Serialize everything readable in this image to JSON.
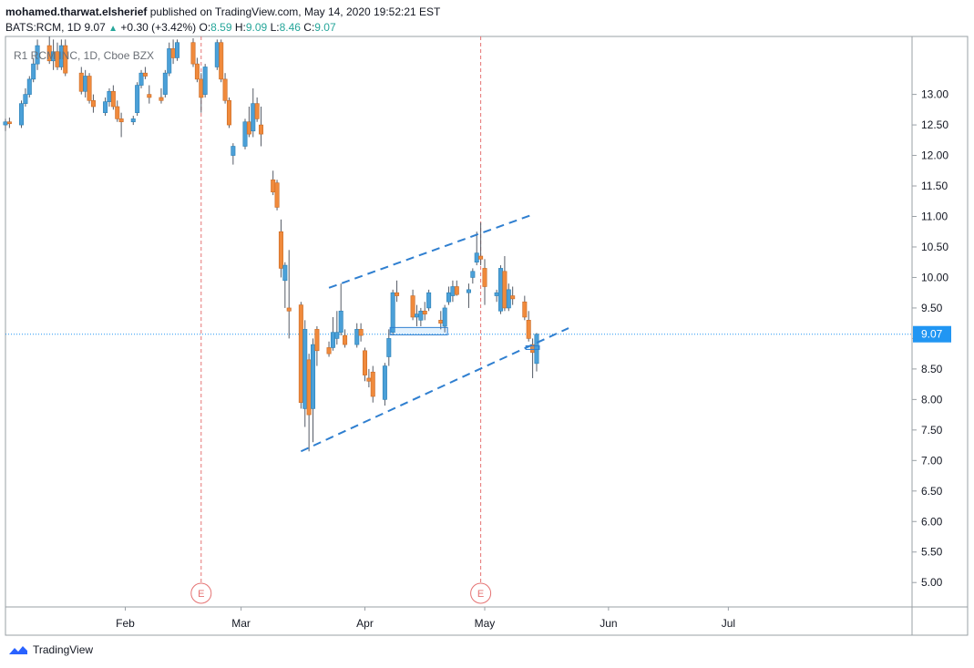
{
  "header": {
    "author": "mohamed.tharwat.elsherief",
    "published_text": "published on TradingView.com, May 14, 2020 19:52:21 EST"
  },
  "ohlc": {
    "symbol": "BATS:RCM, 1D",
    "last": "9.07",
    "change": "+0.30 (+3.42%)",
    "o_label": "O:",
    "o": "8.59",
    "h_label": "H:",
    "h": "9.09",
    "l_label": "L:",
    "l": "8.46",
    "c_label": "C:",
    "c": "9.07"
  },
  "footer": {
    "brand": "TradingView"
  },
  "colors": {
    "up": "#4ba0d8",
    "down": "#f08a3c",
    "trend": "#2f7fd0",
    "grid": "#9aa0a6",
    "earnings": "#e57373",
    "price_line": "#2196f3"
  },
  "chart_data": {
    "type": "candlestick",
    "title": "R1 RCM INC, 1D, Cboe BZX",
    "y_ticks": [
      13.0,
      12.5,
      12.0,
      11.5,
      11.0,
      10.5,
      10.0,
      9.5,
      9.0,
      8.5,
      8.0,
      7.5,
      7.0,
      6.5,
      6.0,
      5.5,
      5.0
    ],
    "y_tick_labels": [
      "13.00",
      "12.50",
      "12.00",
      "11.50",
      "11.00",
      "10.50",
      "10.00",
      "9.50",
      "9.00",
      "8.50",
      "8.00",
      "7.50",
      "7.00",
      "6.50",
      "6.00",
      "5.50",
      "5.00"
    ],
    "ylim": [
      4.6,
      13.95
    ],
    "x_range": [
      "2020-01-02",
      "2020-08-16"
    ],
    "x_ticks": [
      {
        "date": "2020-02-01",
        "label": "Feb"
      },
      {
        "date": "2020-03-01",
        "label": "Mar"
      },
      {
        "date": "2020-04-01",
        "label": "Apr"
      },
      {
        "date": "2020-05-01",
        "label": "May"
      },
      {
        "date": "2020-06-01",
        "label": "Jun"
      },
      {
        "date": "2020-07-01",
        "label": "Jul"
      }
    ],
    "current_price": 9.07,
    "current_price_label": "9.07",
    "earnings_markers": [
      {
        "date": "2020-02-20",
        "label": "E"
      },
      {
        "date": "2020-04-30",
        "label": "E"
      }
    ],
    "trendlines": [
      {
        "from": {
          "date": "2020-03-23",
          "price": 9.83
        },
        "to": {
          "date": "2020-05-13",
          "price": 11.03
        }
      },
      {
        "from": {
          "date": "2020-03-16",
          "price": 7.15
        },
        "to": {
          "date": "2020-05-22",
          "price": 9.17
        }
      }
    ],
    "zones": [
      {
        "from_date": "2020-04-08",
        "to_date": "2020-04-21",
        "top": 9.18,
        "bottom": 9.06
      },
      {
        "from_date": "2020-05-12",
        "to_date": "2020-05-14",
        "top": 8.88,
        "bottom": 8.82
      }
    ],
    "candles": [
      {
        "d": "2020-01-02",
        "o": 12.5,
        "h": 12.6,
        "l": 12.4,
        "c": 12.55
      },
      {
        "d": "2020-01-03",
        "o": 12.55,
        "h": 12.62,
        "l": 12.45,
        "c": 12.52
      },
      {
        "d": "2020-01-06",
        "o": 12.5,
        "h": 12.9,
        "l": 12.45,
        "c": 12.85
      },
      {
        "d": "2020-01-07",
        "o": 12.85,
        "h": 13.1,
        "l": 12.8,
        "c": 13.0
      },
      {
        "d": "2020-01-08",
        "o": 13.0,
        "h": 13.3,
        "l": 12.95,
        "c": 13.25
      },
      {
        "d": "2020-01-09",
        "o": 13.25,
        "h": 13.6,
        "l": 13.2,
        "c": 13.5
      },
      {
        "d": "2020-01-10",
        "o": 13.5,
        "h": 13.9,
        "l": 13.4,
        "c": 13.8
      },
      {
        "d": "2020-01-13",
        "o": 13.8,
        "h": 13.95,
        "l": 13.5,
        "c": 13.55
      },
      {
        "d": "2020-01-14",
        "o": 13.55,
        "h": 13.9,
        "l": 13.4,
        "c": 13.7
      },
      {
        "d": "2020-01-15",
        "o": 13.7,
        "h": 13.85,
        "l": 13.4,
        "c": 13.45
      },
      {
        "d": "2020-01-16",
        "o": 13.45,
        "h": 13.9,
        "l": 13.4,
        "c": 13.8
      },
      {
        "d": "2020-01-17",
        "o": 13.8,
        "h": 13.9,
        "l": 13.3,
        "c": 13.35
      },
      {
        "d": "2020-01-21",
        "o": 13.35,
        "h": 13.45,
        "l": 13.0,
        "c": 13.05
      },
      {
        "d": "2020-01-22",
        "o": 13.05,
        "h": 13.4,
        "l": 12.95,
        "c": 13.3
      },
      {
        "d": "2020-01-23",
        "o": 13.3,
        "h": 13.35,
        "l": 12.85,
        "c": 12.9
      },
      {
        "d": "2020-01-24",
        "o": 12.9,
        "h": 13.0,
        "l": 12.7,
        "c": 12.8
      },
      {
        "d": "2020-01-27",
        "o": 12.7,
        "h": 12.95,
        "l": 12.65,
        "c": 12.88
      },
      {
        "d": "2020-01-28",
        "o": 12.88,
        "h": 13.1,
        "l": 12.8,
        "c": 13.05
      },
      {
        "d": "2020-01-29",
        "o": 13.05,
        "h": 13.15,
        "l": 12.75,
        "c": 12.8
      },
      {
        "d": "2020-01-30",
        "o": 12.8,
        "h": 12.9,
        "l": 12.55,
        "c": 12.6
      },
      {
        "d": "2020-01-31",
        "o": 12.6,
        "h": 12.7,
        "l": 12.3,
        "c": 12.55
      },
      {
        "d": "2020-02-03",
        "o": 12.55,
        "h": 12.65,
        "l": 12.5,
        "c": 12.6
      },
      {
        "d": "2020-02-04",
        "o": 12.7,
        "h": 13.2,
        "l": 12.65,
        "c": 13.15
      },
      {
        "d": "2020-02-05",
        "o": 13.15,
        "h": 13.4,
        "l": 13.1,
        "c": 13.35
      },
      {
        "d": "2020-02-06",
        "o": 13.35,
        "h": 13.45,
        "l": 13.25,
        "c": 13.3
      },
      {
        "d": "2020-02-07",
        "o": 13.0,
        "h": 13.15,
        "l": 12.85,
        "c": 12.95
      },
      {
        "d": "2020-02-10",
        "o": 12.95,
        "h": 13.1,
        "l": 12.85,
        "c": 12.9
      },
      {
        "d": "2020-02-11",
        "o": 13.0,
        "h": 13.4,
        "l": 12.95,
        "c": 13.35
      },
      {
        "d": "2020-02-12",
        "o": 13.35,
        "h": 13.85,
        "l": 13.3,
        "c": 13.75
      },
      {
        "d": "2020-02-13",
        "o": 13.75,
        "h": 13.9,
        "l": 13.5,
        "c": 13.6
      },
      {
        "d": "2020-02-14",
        "o": 13.6,
        "h": 13.9,
        "l": 13.55,
        "c": 13.85
      },
      {
        "d": "2020-02-18",
        "o": 13.85,
        "h": 13.92,
        "l": 13.45,
        "c": 13.5
      },
      {
        "d": "2020-02-19",
        "o": 13.5,
        "h": 13.6,
        "l": 13.2,
        "c": 13.25
      },
      {
        "d": "2020-02-20",
        "o": 13.25,
        "h": 13.35,
        "l": 12.7,
        "c": 12.95
      },
      {
        "d": "2020-02-21",
        "o": 13.0,
        "h": 13.5,
        "l": 12.95,
        "c": 13.45
      },
      {
        "d": "2020-02-24",
        "o": 13.45,
        "h": 13.9,
        "l": 13.4,
        "c": 13.85
      },
      {
        "d": "2020-02-25",
        "o": 13.85,
        "h": 13.9,
        "l": 13.2,
        "c": 13.25
      },
      {
        "d": "2020-02-26",
        "o": 13.25,
        "h": 13.35,
        "l": 12.85,
        "c": 12.9
      },
      {
        "d": "2020-02-27",
        "o": 12.9,
        "h": 12.95,
        "l": 12.45,
        "c": 12.5
      },
      {
        "d": "2020-02-28",
        "o": 12.0,
        "h": 12.2,
        "l": 11.85,
        "c": 12.15
      },
      {
        "d": "2020-03-02",
        "o": 12.15,
        "h": 12.6,
        "l": 12.1,
        "c": 12.55
      },
      {
        "d": "2020-03-03",
        "o": 12.55,
        "h": 12.8,
        "l": 12.3,
        "c": 12.35
      },
      {
        "d": "2020-03-04",
        "o": 12.4,
        "h": 13.1,
        "l": 12.3,
        "c": 12.85
      },
      {
        "d": "2020-03-05",
        "o": 12.85,
        "h": 12.95,
        "l": 12.55,
        "c": 12.6
      },
      {
        "d": "2020-03-06",
        "o": 12.5,
        "h": 12.8,
        "l": 12.15,
        "c": 12.35
      },
      {
        "d": "2020-03-09",
        "o": 11.6,
        "h": 11.75,
        "l": 11.35,
        "c": 11.4
      },
      {
        "d": "2020-03-10",
        "o": 11.55,
        "h": 11.6,
        "l": 11.1,
        "c": 11.15
      },
      {
        "d": "2020-03-11",
        "o": 10.75,
        "h": 10.95,
        "l": 10.0,
        "c": 10.15
      },
      {
        "d": "2020-03-12",
        "o": 9.95,
        "h": 10.25,
        "l": 9.5,
        "c": 10.2
      },
      {
        "d": "2020-03-13",
        "o": 9.5,
        "h": 10.45,
        "l": 9.0,
        "c": 9.45
      },
      {
        "d": "2020-03-16",
        "o": 9.55,
        "h": 9.6,
        "l": 7.85,
        "c": 7.95
      },
      {
        "d": "2020-03-17",
        "o": 7.85,
        "h": 9.3,
        "l": 7.55,
        "c": 9.15
      },
      {
        "d": "2020-03-18",
        "o": 8.65,
        "h": 8.75,
        "l": 7.15,
        "c": 7.75
      },
      {
        "d": "2020-03-19",
        "o": 7.85,
        "h": 9.0,
        "l": 7.3,
        "c": 8.9
      },
      {
        "d": "2020-03-20",
        "o": 9.15,
        "h": 9.2,
        "l": 8.55,
        "c": 8.8
      },
      {
        "d": "2020-03-23",
        "o": 8.85,
        "h": 8.95,
        "l": 8.7,
        "c": 8.75
      },
      {
        "d": "2020-03-24",
        "o": 8.85,
        "h": 9.35,
        "l": 8.8,
        "c": 9.1
      },
      {
        "d": "2020-03-25",
        "o": 9.0,
        "h": 9.45,
        "l": 8.9,
        "c": 9.1
      },
      {
        "d": "2020-03-26",
        "o": 9.1,
        "h": 9.9,
        "l": 9.05,
        "c": 9.45
      },
      {
        "d": "2020-03-27",
        "o": 9.05,
        "h": 9.15,
        "l": 8.85,
        "c": 8.9
      },
      {
        "d": "2020-03-30",
        "o": 8.9,
        "h": 9.25,
        "l": 8.85,
        "c": 9.15
      },
      {
        "d": "2020-03-31",
        "o": 9.15,
        "h": 9.25,
        "l": 8.95,
        "c": 9.05
      },
      {
        "d": "2020-04-01",
        "o": 8.8,
        "h": 8.85,
        "l": 8.3,
        "c": 8.4
      },
      {
        "d": "2020-04-02",
        "o": 8.35,
        "h": 8.5,
        "l": 8.2,
        "c": 8.3
      },
      {
        "d": "2020-04-03",
        "o": 8.45,
        "h": 8.55,
        "l": 7.95,
        "c": 8.05
      },
      {
        "d": "2020-04-06",
        "o": 8.0,
        "h": 8.6,
        "l": 7.9,
        "c": 8.55
      },
      {
        "d": "2020-04-07",
        "o": 8.7,
        "h": 9.15,
        "l": 8.55,
        "c": 9.0
      },
      {
        "d": "2020-04-08",
        "o": 9.1,
        "h": 9.8,
        "l": 9.05,
        "c": 9.75
      },
      {
        "d": "2020-04-09",
        "o": 9.75,
        "h": 9.95,
        "l": 9.6,
        "c": 9.7
      },
      {
        "d": "2020-04-13",
        "o": 9.7,
        "h": 9.8,
        "l": 9.3,
        "c": 9.35
      },
      {
        "d": "2020-04-14",
        "o": 9.35,
        "h": 9.55,
        "l": 9.2,
        "c": 9.4
      },
      {
        "d": "2020-04-15",
        "o": 9.3,
        "h": 9.5,
        "l": 9.2,
        "c": 9.45
      },
      {
        "d": "2020-04-16",
        "o": 9.45,
        "h": 9.6,
        "l": 9.3,
        "c": 9.4
      },
      {
        "d": "2020-04-17",
        "o": 9.5,
        "h": 9.8,
        "l": 9.45,
        "c": 9.75
      },
      {
        "d": "2020-04-20",
        "o": 9.3,
        "h": 9.45,
        "l": 9.15,
        "c": 9.25
      },
      {
        "d": "2020-04-21",
        "o": 9.2,
        "h": 9.55,
        "l": 9.1,
        "c": 9.5
      },
      {
        "d": "2020-04-22",
        "o": 9.6,
        "h": 9.85,
        "l": 9.55,
        "c": 9.75
      },
      {
        "d": "2020-04-23",
        "o": 9.7,
        "h": 9.95,
        "l": 9.6,
        "c": 9.85
      },
      {
        "d": "2020-04-24",
        "o": 9.85,
        "h": 9.95,
        "l": 9.7,
        "c": 9.72
      },
      {
        "d": "2020-04-27",
        "o": 9.75,
        "h": 9.9,
        "l": 9.5,
        "c": 9.8
      },
      {
        "d": "2020-04-28",
        "o": 10.0,
        "h": 10.15,
        "l": 9.9,
        "c": 10.1
      },
      {
        "d": "2020-04-29",
        "o": 10.25,
        "h": 10.75,
        "l": 10.2,
        "c": 10.4
      },
      {
        "d": "2020-04-30",
        "o": 10.35,
        "h": 10.9,
        "l": 10.2,
        "c": 10.3
      },
      {
        "d": "2020-05-01",
        "o": 10.15,
        "h": 10.3,
        "l": 9.55,
        "c": 9.85
      },
      {
        "d": "2020-05-04",
        "o": 9.7,
        "h": 9.8,
        "l": 9.6,
        "c": 9.75
      },
      {
        "d": "2020-05-05",
        "o": 9.45,
        "h": 10.2,
        "l": 9.4,
        "c": 10.15
      },
      {
        "d": "2020-05-06",
        "o": 10.1,
        "h": 10.35,
        "l": 9.45,
        "c": 9.5
      },
      {
        "d": "2020-05-07",
        "o": 9.5,
        "h": 9.9,
        "l": 9.45,
        "c": 9.8
      },
      {
        "d": "2020-05-08",
        "o": 9.7,
        "h": 9.85,
        "l": 9.55,
        "c": 9.65
      },
      {
        "d": "2020-05-11",
        "o": 9.6,
        "h": 9.7,
        "l": 9.3,
        "c": 9.35
      },
      {
        "d": "2020-05-12",
        "o": 9.3,
        "h": 9.45,
        "l": 8.95,
        "c": 9.0
      },
      {
        "d": "2020-05-13",
        "o": 8.9,
        "h": 9.0,
        "l": 8.35,
        "c": 8.77
      },
      {
        "d": "2020-05-14",
        "o": 8.59,
        "h": 9.09,
        "l": 8.46,
        "c": 9.07
      }
    ]
  }
}
